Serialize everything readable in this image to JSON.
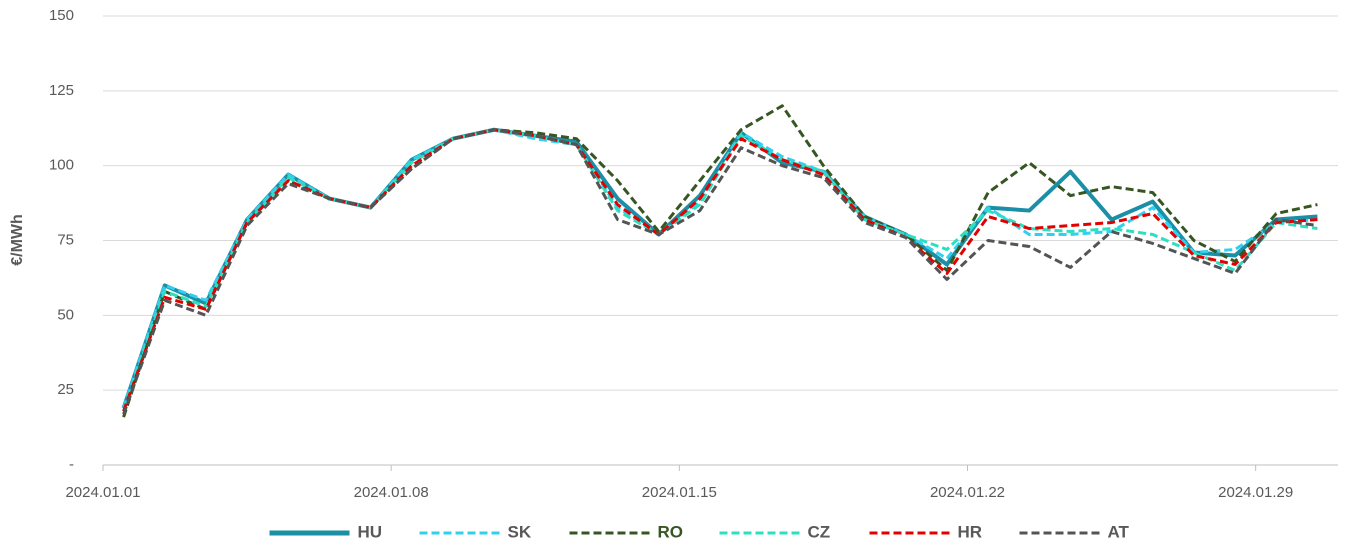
{
  "chart_data": {
    "type": "line",
    "ylabel": "€/MWh",
    "categories": [
      "2024.01.01",
      null,
      null,
      null,
      null,
      null,
      null,
      "2024.01.08",
      null,
      null,
      null,
      null,
      null,
      null,
      "2024.01.15",
      null,
      null,
      null,
      null,
      null,
      null,
      "2024.01.22",
      null,
      null,
      null,
      null,
      null,
      null,
      "2024.01.29",
      null
    ],
    "series": [
      {
        "name": "HU",
        "color": "#1a8fa6",
        "dashed": false,
        "values": [
          19,
          60,
          54,
          82,
          97,
          89,
          86,
          102,
          109,
          112,
          110,
          108,
          89,
          77,
          90,
          111,
          101,
          98,
          83,
          77,
          67,
          86,
          85,
          98,
          82,
          88,
          71,
          70,
          82,
          83
        ]
      },
      {
        "name": "SK",
        "color": "#2fd0f0",
        "dashed": true,
        "values": [
          19,
          60,
          55,
          82,
          97,
          89,
          86,
          102,
          109,
          112,
          109,
          107,
          86,
          77,
          88,
          111,
          103,
          98,
          83,
          77,
          69,
          86,
          77,
          77,
          78,
          86,
          71,
          72,
          81,
          82
        ]
      },
      {
        "name": "RO",
        "color": "#375623",
        "dashed": true,
        "values": [
          16,
          58,
          52,
          81,
          95,
          89,
          86,
          99,
          109,
          112,
          111,
          109,
          95,
          78,
          95,
          112,
          120,
          100,
          83,
          77,
          65,
          91,
          101,
          90,
          93,
          91,
          75,
          68,
          84,
          87
        ]
      },
      {
        "name": "CZ",
        "color": "#2be0c0",
        "dashed": true,
        "values": [
          18,
          58,
          53,
          81,
          96,
          89,
          86,
          101,
          109,
          112,
          110,
          107,
          85,
          77,
          87,
          110,
          102,
          98,
          82,
          77,
          72,
          85,
          79,
          78,
          79,
          77,
          71,
          65,
          81,
          79
        ]
      },
      {
        "name": "HR",
        "color": "#e30000",
        "dashed": true,
        "values": [
          18,
          56,
          52,
          81,
          95,
          89,
          86,
          100,
          109,
          112,
          110,
          107,
          87,
          77,
          89,
          109,
          102,
          97,
          82,
          76,
          64,
          83,
          79,
          80,
          81,
          84,
          70,
          67,
          81,
          82
        ]
      },
      {
        "name": "AT",
        "color": "#545454",
        "dashed": true,
        "values": [
          17,
          55,
          50,
          80,
          94,
          89,
          86,
          99,
          109,
          112,
          110,
          107,
          82,
          77,
          85,
          106,
          100,
          96,
          81,
          76,
          62,
          75,
          73,
          66,
          78,
          74,
          69,
          64,
          82,
          80
        ]
      }
    ],
    "ylim": [
      0,
      150
    ],
    "yticks": [
      {
        "value": 0,
        "label": "-"
      },
      25,
      50,
      75,
      100,
      125,
      150
    ],
    "grid": true,
    "legend": "bottom"
  }
}
